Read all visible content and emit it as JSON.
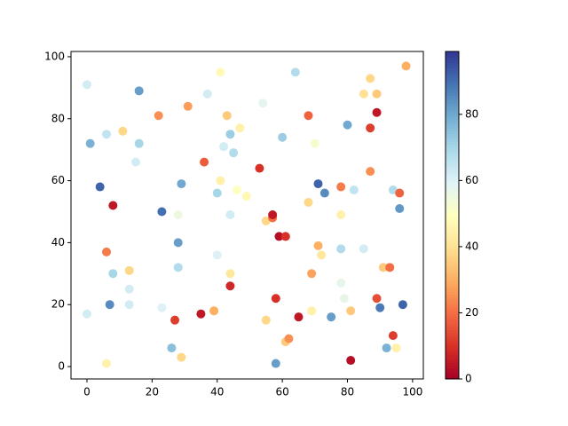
{
  "chart_data": {
    "type": "scatter",
    "colormap": "RdYlBu",
    "x": [
      0,
      1,
      6,
      11,
      16,
      16,
      15,
      22,
      31,
      41,
      37,
      64,
      54,
      43,
      44,
      42,
      45,
      47,
      60,
      68,
      70,
      80,
      87,
      85,
      89,
      98,
      89,
      87,
      87,
      36,
      53,
      41,
      29,
      4,
      8,
      40,
      46,
      49,
      71,
      73,
      78,
      82,
      94,
      96,
      96,
      23,
      28,
      44,
      55,
      57,
      57,
      59,
      61,
      68,
      78,
      28,
      6,
      71,
      72,
      78,
      85,
      91,
      93,
      13,
      28,
      40,
      44,
      8,
      13,
      44,
      69,
      78,
      79,
      58,
      89,
      90,
      97,
      7,
      13,
      0,
      23,
      39,
      39,
      35,
      27,
      55,
      65,
      69,
      75,
      81,
      61,
      62,
      94,
      92,
      95,
      26,
      29,
      6,
      58,
      81
    ],
    "y": [
      91,
      72,
      75,
      76,
      89,
      72,
      66,
      81,
      84,
      95,
      88,
      95,
      85,
      81,
      75,
      71,
      69,
      77,
      74,
      81,
      72,
      78,
      93,
      88,
      88,
      97,
      82,
      77,
      63,
      66,
      64,
      60,
      59,
      58,
      52,
      56,
      57,
      55,
      59,
      56,
      58,
      57,
      57,
      56,
      51,
      50,
      49,
      49,
      47,
      48,
      49,
      42,
      42,
      53,
      49,
      40,
      37,
      39,
      36,
      38,
      38,
      32,
      32,
      31,
      32,
      36,
      30,
      30,
      25,
      26,
      30,
      27,
      22,
      22,
      22,
      19,
      20,
      20,
      20,
      17,
      19,
      18,
      18,
      17,
      15,
      15,
      16,
      18,
      16,
      18,
      8,
      9,
      10,
      6,
      6,
      6,
      3,
      1,
      1,
      2
    ],
    "color_values": [
      62,
      78,
      65,
      38,
      82,
      70,
      62,
      25,
      27,
      48,
      62,
      68,
      58,
      35,
      72,
      62,
      68,
      45,
      72,
      18,
      52,
      80,
      38,
      40,
      35,
      30,
      5,
      12,
      25,
      17,
      10,
      45,
      80,
      92,
      5,
      70,
      50,
      47,
      92,
      85,
      22,
      65,
      68,
      18,
      83,
      90,
      55,
      62,
      38,
      20,
      5,
      3,
      10,
      38,
      45,
      82,
      22,
      30,
      42,
      68,
      62,
      35,
      20,
      38,
      68,
      60,
      42,
      70,
      62,
      8,
      28,
      57,
      57,
      10,
      15,
      88,
      92,
      85,
      62,
      62,
      60,
      38,
      30,
      5,
      12,
      38,
      5,
      45,
      82,
      35,
      35,
      25,
      12,
      78,
      45,
      75,
      38,
      45,
      82,
      3
    ],
    "xlim": [
      -4.9,
      103.3
    ],
    "ylim": [
      -4,
      101.7
    ],
    "xticks": [
      0,
      20,
      40,
      60,
      80,
      100
    ],
    "yticks": [
      0,
      20,
      40,
      60,
      80,
      100
    ],
    "clim": [
      0,
      99
    ],
    "colorbar_ticks": [
      0,
      20,
      40,
      60,
      80
    ]
  }
}
